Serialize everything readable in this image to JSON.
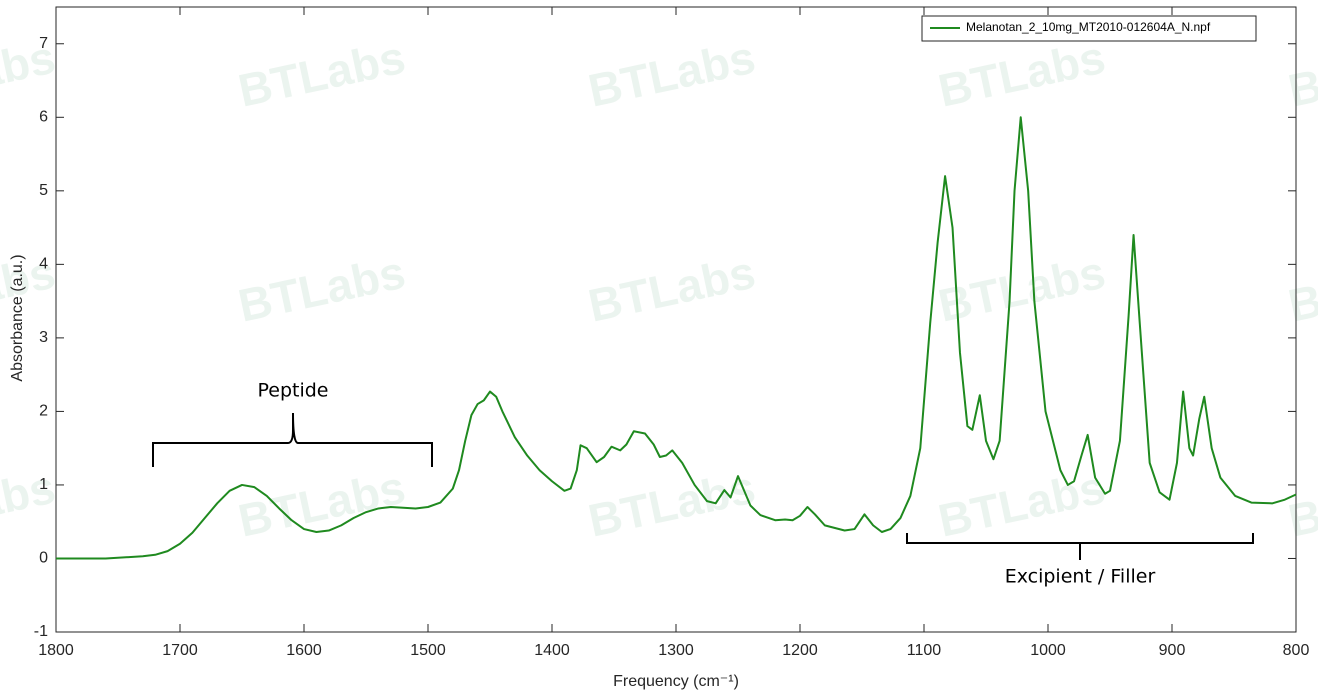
{
  "chart_data": {
    "type": "line",
    "xlabel": "Frequency (cm⁻¹)",
    "ylabel": "Absorbance (a.u.)",
    "x": [
      1800,
      1760,
      1730,
      1720,
      1710,
      1700,
      1690,
      1680,
      1670,
      1660,
      1650,
      1640,
      1630,
      1620,
      1610,
      1600,
      1590,
      1580,
      1570,
      1560,
      1550,
      1540,
      1530,
      1520,
      1510,
      1500,
      1490,
      1480,
      1475,
      1470,
      1465,
      1460,
      1455,
      1450,
      1445,
      1440,
      1430,
      1420,
      1410,
      1400,
      1390,
      1385,
      1380,
      1377,
      1372,
      1364,
      1358,
      1352,
      1345,
      1340,
      1334,
      1325,
      1318,
      1313,
      1308,
      1303,
      1295,
      1285,
      1275,
      1268,
      1261,
      1256,
      1250,
      1240,
      1232,
      1220,
      1212,
      1206,
      1200,
      1194,
      1188,
      1180,
      1164,
      1156,
      1148,
      1141,
      1134,
      1127,
      1119,
      1111,
      1103,
      1095,
      1089,
      1083,
      1077,
      1071,
      1065,
      1061,
      1055,
      1050,
      1044,
      1039,
      1031,
      1027,
      1022,
      1016,
      1011,
      1002,
      990,
      984,
      979,
      973,
      968,
      962,
      954,
      950,
      942,
      935,
      931,
      926,
      918,
      910,
      902,
      896,
      891,
      886,
      883,
      878,
      874,
      868,
      861,
      849,
      836,
      819,
      809,
      800
    ],
    "series": [
      {
        "name": "Melanotan_2_10mg_MT2010-012604A_N.npf",
        "color": "#1f8a1f",
        "values": [
          0,
          0,
          0.03,
          0.05,
          0.1,
          0.2,
          0.35,
          0.55,
          0.75,
          0.92,
          1.0,
          0.97,
          0.85,
          0.68,
          0.52,
          0.4,
          0.36,
          0.38,
          0.45,
          0.55,
          0.63,
          0.68,
          0.7,
          0.69,
          0.68,
          0.7,
          0.76,
          0.95,
          1.2,
          1.6,
          1.95,
          2.1,
          2.15,
          2.27,
          2.2,
          2.0,
          1.65,
          1.4,
          1.2,
          1.05,
          0.92,
          0.95,
          1.2,
          1.54,
          1.5,
          1.31,
          1.38,
          1.52,
          1.47,
          1.55,
          1.73,
          1.7,
          1.55,
          1.38,
          1.4,
          1.47,
          1.3,
          1.0,
          0.78,
          0.75,
          0.93,
          0.83,
          1.12,
          0.72,
          0.59,
          0.52,
          0.53,
          0.52,
          0.58,
          0.7,
          0.6,
          0.45,
          0.38,
          0.4,
          0.6,
          0.45,
          0.36,
          0.4,
          0.55,
          0.85,
          1.5,
          3.2,
          4.3,
          5.2,
          4.5,
          2.8,
          1.8,
          1.75,
          2.22,
          1.6,
          1.35,
          1.6,
          3.5,
          5.0,
          6.0,
          5.0,
          3.5,
          2.0,
          1.2,
          1.0,
          1.05,
          1.4,
          1.68,
          1.1,
          0.88,
          0.92,
          1.6,
          3.3,
          4.4,
          3.2,
          1.3,
          0.9,
          0.8,
          1.3,
          2.27,
          1.5,
          1.4,
          1.9,
          2.2,
          1.5,
          1.1,
          0.85,
          0.76,
          0.75,
          0.8,
          0.87
        ]
      }
    ],
    "xlim": [
      1800,
      800
    ],
    "ylim": [
      -1,
      7.5
    ],
    "xticks": [
      1800,
      1700,
      1600,
      1500,
      1400,
      1300,
      1200,
      1100,
      1000,
      900,
      800
    ],
    "yticks": [
      -1,
      0,
      1,
      2,
      3,
      4,
      5,
      6,
      7
    ],
    "legend": "upper right",
    "annotations": [
      "Peptide",
      "Excipient / Filler"
    ],
    "watermark": "BTLabs"
  }
}
